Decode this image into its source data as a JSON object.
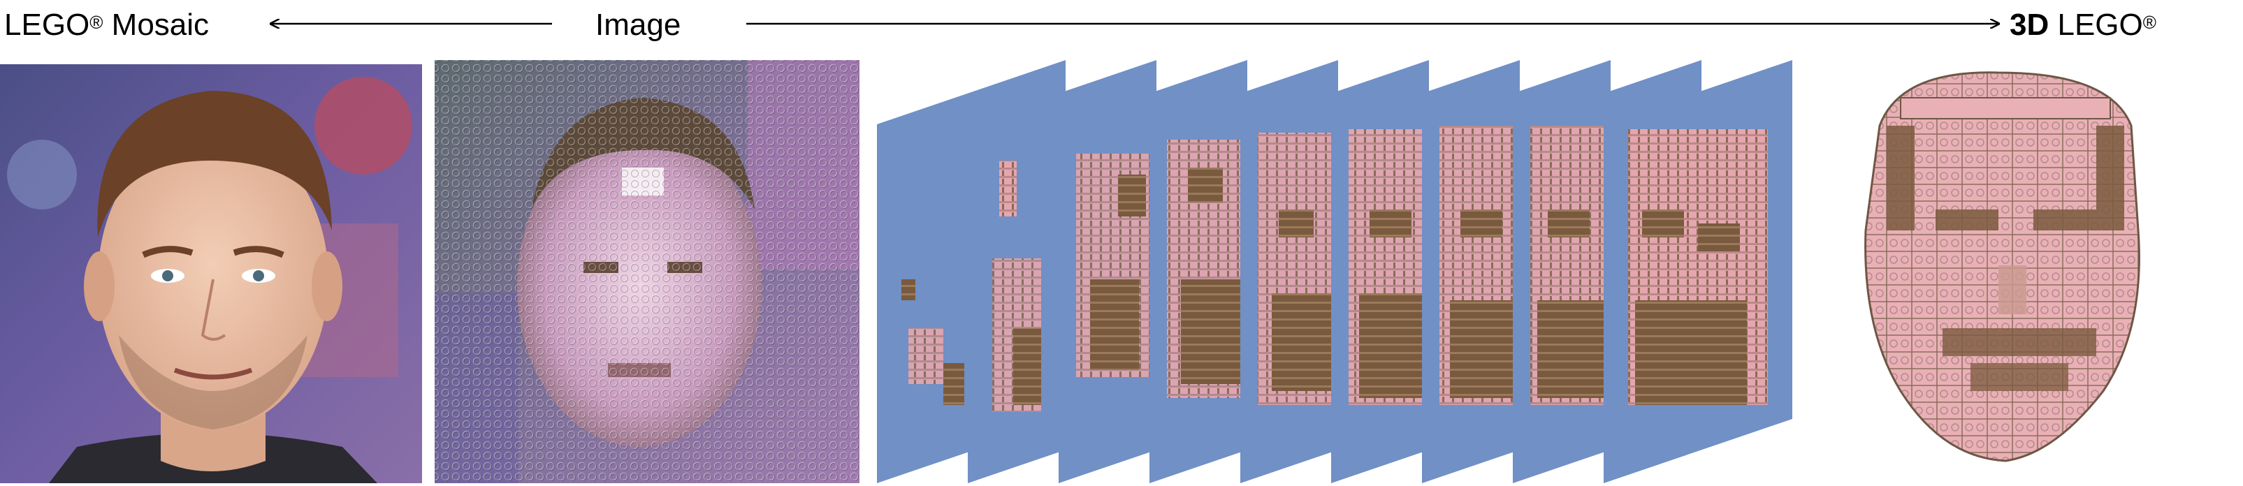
{
  "labels": {
    "lego_mosaic": {
      "text": "LEGO",
      "sup": "®",
      "suffix": " Mosaic"
    },
    "image": "Image",
    "lego_3d": {
      "bold": "3D",
      "text": " LEGO",
      "sup": "®"
    }
  },
  "colors": {
    "slice_blue": "#7090c6",
    "brick_pink": "#e6a6b0",
    "brick_brown": "#7a5a3e",
    "skin": "#e9c1a6",
    "hair": "#6b4128",
    "bg_purple": "#6b5ca2"
  },
  "slices": {
    "count": 9
  },
  "panels": [
    {
      "id": "photo",
      "icon": "face-photo"
    },
    {
      "id": "mosaic",
      "icon": "lego-mosaic-grid"
    },
    {
      "id": "slices",
      "icon": "depth-slices"
    },
    {
      "id": "model",
      "icon": "lego-3d-head"
    }
  ]
}
